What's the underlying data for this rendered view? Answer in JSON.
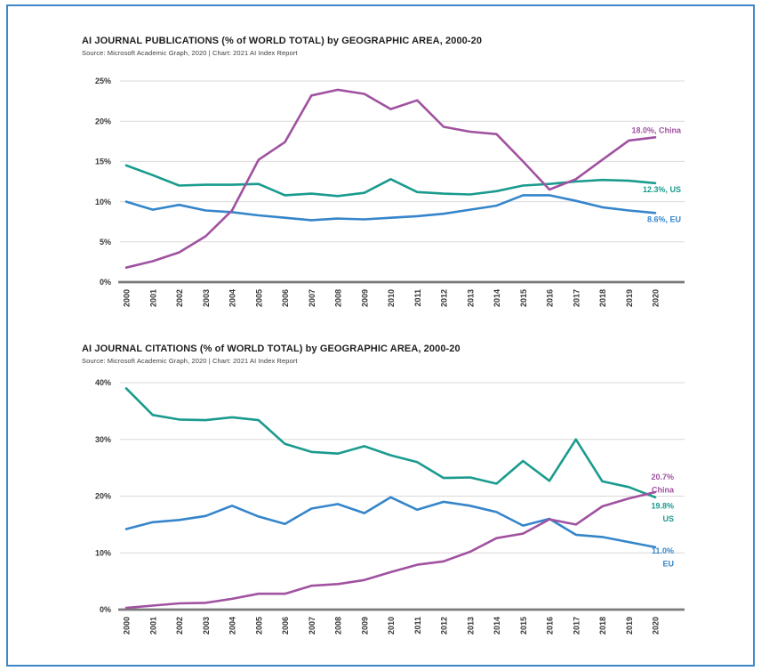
{
  "page": {
    "background": "#ffffff",
    "border_color": "#3d87c8"
  },
  "chart_data": [
    {
      "type": "line",
      "title": "AI JOURNAL PUBLICATIONS (% of WORLD TOTAL) by GEOGRAPHIC AREA, 2000-20",
      "source": "Source: Microsoft Academic Graph, 2020 | Chart: 2021 AI Index Report",
      "ylabel": "AI Journal Publications (% of World Total)",
      "xlabel": "",
      "grid": true,
      "legend_position": "end-of-line-labels",
      "ylim": [
        0,
        25
      ],
      "ytick_labels": [
        "0%",
        "5%",
        "10%",
        "15%",
        "20%",
        "25%"
      ],
      "categories": [
        "2000",
        "2001",
        "2002",
        "2003",
        "2004",
        "2005",
        "2006",
        "2007",
        "2008",
        "2009",
        "2010",
        "2011",
        "2012",
        "2013",
        "2014",
        "2015",
        "2016",
        "2017",
        "2018",
        "2019",
        "2020"
      ],
      "series": [
        {
          "name": "EU",
          "color": "#3585cb",
          "end_label_lines": [
            "8.6%, EU"
          ],
          "values": [
            10.0,
            9.0,
            9.6,
            8.9,
            8.7,
            8.3,
            8.0,
            7.7,
            7.9,
            7.8,
            8.0,
            8.2,
            8.5,
            9.0,
            9.5,
            10.8,
            10.8,
            10.1,
            9.3,
            8.9,
            8.6
          ]
        },
        {
          "name": "US",
          "color": "#1a9b8e",
          "end_label_lines": [
            "12.3%, US"
          ],
          "values": [
            14.5,
            13.3,
            12.0,
            12.1,
            12.1,
            12.2,
            10.8,
            11.0,
            10.7,
            11.1,
            12.8,
            11.2,
            11.0,
            10.9,
            11.3,
            12.0,
            12.2,
            12.5,
            12.7,
            12.6,
            12.3
          ]
        },
        {
          "name": "China",
          "color": "#a052a0",
          "end_label_lines": [
            "18.0%, China"
          ],
          "values": [
            1.8,
            2.6,
            3.7,
            5.7,
            8.9,
            15.2,
            17.4,
            23.2,
            23.9,
            23.4,
            21.5,
            22.6,
            19.3,
            18.7,
            18.4,
            15.0,
            11.5,
            12.8,
            15.2,
            17.6,
            18.0
          ]
        }
      ]
    },
    {
      "type": "line",
      "title": "AI JOURNAL CITATIONS (% of WORLD TOTAL) by GEOGRAPHIC AREA, 2000-20",
      "source": "Source: Microsoft Academic Graph, 2020 | Chart: 2021 AI Index Report",
      "ylabel": "AI Journal Citations (% of World Total)",
      "xlabel": "",
      "grid": true,
      "legend_position": "end-of-line-labels",
      "ylim": [
        0,
        40
      ],
      "ytick_labels": [
        "0%",
        "10%",
        "20%",
        "30%",
        "40%"
      ],
      "categories": [
        "2000",
        "2001",
        "2002",
        "2003",
        "2004",
        "2005",
        "2006",
        "2007",
        "2008",
        "2009",
        "2010",
        "2011",
        "2012",
        "2013",
        "2014",
        "2015",
        "2016",
        "2017",
        "2018",
        "2019",
        "2020"
      ],
      "series": [
        {
          "name": "EU",
          "color": "#3585cb",
          "end_label_lines": [
            "11.0%",
            "EU"
          ],
          "values": [
            14.2,
            15.4,
            15.8,
            16.5,
            18.3,
            16.4,
            15.1,
            17.8,
            18.6,
            17.0,
            19.8,
            17.6,
            19.0,
            18.3,
            17.2,
            14.8,
            16.0,
            13.2,
            12.8,
            11.9,
            11.0
          ]
        },
        {
          "name": "US",
          "color": "#1a9b8e",
          "end_label_lines": [
            "19.8%",
            "US"
          ],
          "values": [
            39.0,
            34.3,
            33.5,
            33.4,
            33.9,
            33.4,
            29.2,
            27.8,
            27.5,
            28.8,
            27.2,
            26.0,
            23.2,
            23.3,
            22.2,
            26.2,
            22.7,
            30.0,
            22.6,
            21.6,
            19.8
          ]
        },
        {
          "name": "China",
          "color": "#a052a0",
          "end_label_lines": [
            "20.7%",
            "China"
          ],
          "values": [
            0.3,
            0.7,
            1.1,
            1.2,
            1.9,
            2.8,
            2.8,
            4.2,
            4.5,
            5.2,
            6.6,
            7.9,
            8.5,
            10.2,
            12.6,
            13.4,
            15.9,
            15.0,
            18.2,
            19.6,
            20.7
          ]
        }
      ]
    }
  ]
}
